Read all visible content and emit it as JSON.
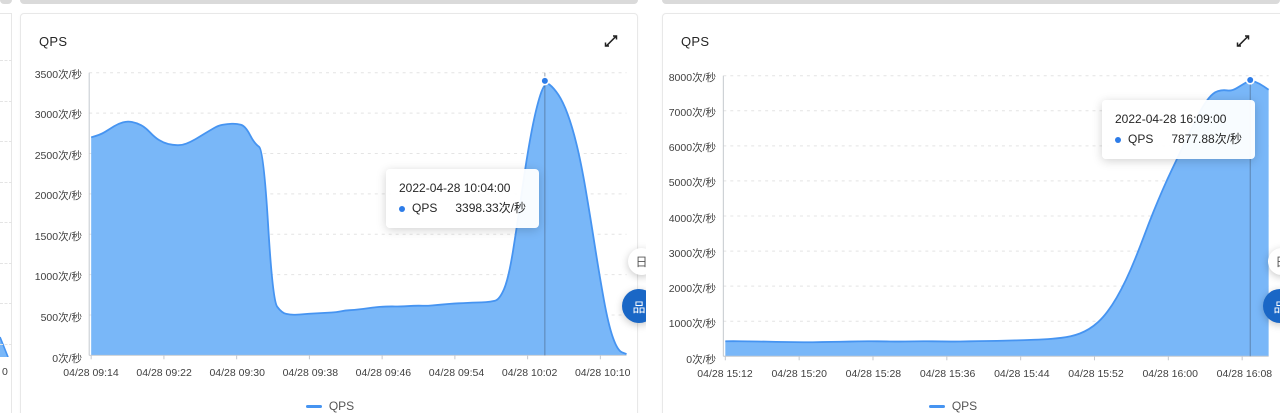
{
  "page": {
    "background": "#ffffff",
    "card_border": "#e8e8e8",
    "grid_color": "#e4e4e4"
  },
  "left_edge_panel": {
    "partial_x_label": "0"
  },
  "floating_widgets": {
    "white_button_glyph": "日",
    "blue_button_glyph": "品",
    "blue_color": "#1a67c6"
  },
  "chart_data": [
    {
      "type": "area",
      "title": "QPS",
      "legend": [
        "QPS"
      ],
      "unit": "次/秒",
      "grid": "dashed",
      "legend_position": "bottom",
      "y_axis": {
        "min": 0,
        "max": 3500,
        "step": 500,
        "tick_labels": [
          "3500次/秒",
          "3000次/秒",
          "2500次/秒",
          "2000次/秒",
          "1500次/秒",
          "1000次/秒",
          "500次/秒",
          "0次/秒"
        ]
      },
      "x_axis": {
        "tick_labels": [
          "04/28 09:14",
          "04/28 09:22",
          "04/28 09:30",
          "04/28 09:38",
          "04/28 09:46",
          "04/28 09:54",
          "04/28 10:02",
          "04/28 10:10"
        ],
        "time_range": {
          "start": "04/28 09:14",
          "end": "04/28 10:13",
          "step_minutes": 1
        }
      },
      "series": [
        {
          "name": "QPS",
          "values": [
            2700,
            2730,
            2800,
            2870,
            2900,
            2880,
            2820,
            2700,
            2630,
            2605,
            2600,
            2645,
            2710,
            2780,
            2845,
            2865,
            2870,
            2840,
            2620,
            2545,
            680,
            525,
            500,
            505,
            515,
            520,
            528,
            532,
            556,
            562,
            575,
            592,
            602,
            606,
            604,
            610,
            616,
            612,
            622,
            632,
            642,
            646,
            652,
            656,
            662,
            690,
            950,
            1650,
            2450,
            3050,
            3398.33,
            3310,
            3140,
            2840,
            2380,
            1720,
            1000,
            380,
            60,
            15
          ]
        }
      ],
      "highlight": {
        "index": 50,
        "datetime": "2022-04-28 10:04:00",
        "series": "QPS",
        "value": 3398.33,
        "value_label": "3398.33次/秒"
      },
      "colors": {
        "line": "#4694f1",
        "area": "#79b7f8",
        "marker": "#2d7ce8",
        "crosshair": "rgba(70,90,115,0.55)"
      }
    },
    {
      "type": "area",
      "title": "QPS",
      "legend": [
        "QPS"
      ],
      "unit": "次/秒",
      "grid": "dashed",
      "legend_position": "bottom",
      "y_axis": {
        "min": 0,
        "max": 8000,
        "step": 1000,
        "tick_labels": [
          "8000次/秒",
          "7000次/秒",
          "6000次/秒",
          "5000次/秒",
          "4000次/秒",
          "3000次/秒",
          "2000次/秒",
          "1000次/秒",
          "0次/秒"
        ]
      },
      "x_axis": {
        "tick_labels": [
          "04/28 15:12",
          "04/28 15:20",
          "04/28 15:28",
          "04/28 15:36",
          "04/28 15:44",
          "04/28 15:52",
          "04/28 16:00",
          "04/28 16:08"
        ],
        "time_range": {
          "start": "04/28 15:12",
          "end": "04/28 16:11",
          "step_minutes": 1
        }
      },
      "series": [
        {
          "name": "QPS",
          "values": [
            430,
            432,
            428,
            425,
            420,
            415,
            410,
            406,
            402,
            400,
            404,
            408,
            414,
            418,
            424,
            428,
            430,
            426,
            422,
            420,
            424,
            428,
            430,
            426,
            422,
            420,
            424,
            430,
            434,
            438,
            444,
            450,
            458,
            466,
            476,
            490,
            510,
            545,
            600,
            700,
            860,
            1100,
            1450,
            1900,
            2450,
            3100,
            3800,
            4450,
            5050,
            5600,
            6150,
            6700,
            7200,
            7520,
            7600,
            7560,
            7720,
            7877.88,
            7780,
            7600
          ]
        }
      ],
      "highlight": {
        "index": 57,
        "datetime": "2022-04-28 16:09:00",
        "series": "QPS",
        "value": 7877.88,
        "value_label": "7877.88次/秒"
      },
      "colors": {
        "line": "#4694f1",
        "area": "#79b7f8",
        "marker": "#2d7ce8",
        "crosshair": "rgba(70,90,115,0.55)"
      }
    }
  ]
}
